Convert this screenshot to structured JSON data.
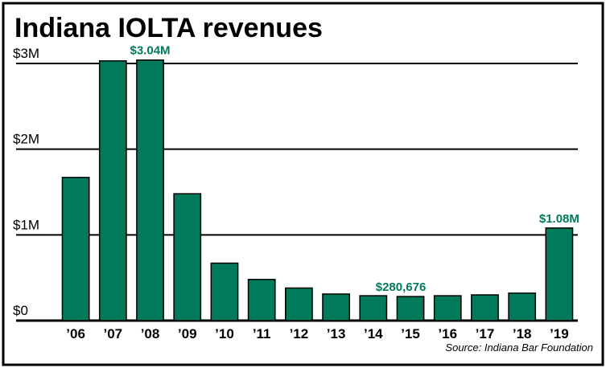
{
  "chart_data": {
    "type": "bar",
    "title": "Indiana IOLTA revenues",
    "source": "Source: Indiana Bar Foundation",
    "categories": [
      "’06",
      "’07",
      "’08",
      "’09",
      "’10",
      "’11",
      "’12",
      "’13",
      "’14",
      "’15",
      "’16",
      "’17",
      "’18",
      "’19"
    ],
    "values": [
      1.67,
      3.03,
      3.04,
      1.48,
      0.67,
      0.48,
      0.38,
      0.31,
      0.29,
      0.280676,
      0.29,
      0.3,
      0.32,
      1.08
    ],
    "value_unit": "$M",
    "ylim": [
      0,
      3
    ],
    "yticks": [
      {
        "value": 0,
        "label": "$0"
      },
      {
        "value": 1,
        "label": "$1M"
      },
      {
        "value": 2,
        "label": "$2M"
      },
      {
        "value": 3,
        "label": "$3M"
      }
    ],
    "data_labels": [
      {
        "index": 2,
        "text": "$3.04M"
      },
      {
        "index": 9,
        "text": "$280,676"
      },
      {
        "index": 13,
        "text": "$1.08M"
      }
    ],
    "grid": true,
    "colors": {
      "bar": "#007a5a",
      "label": "#007a5a",
      "frame": "#000000",
      "text": "#000000"
    }
  }
}
